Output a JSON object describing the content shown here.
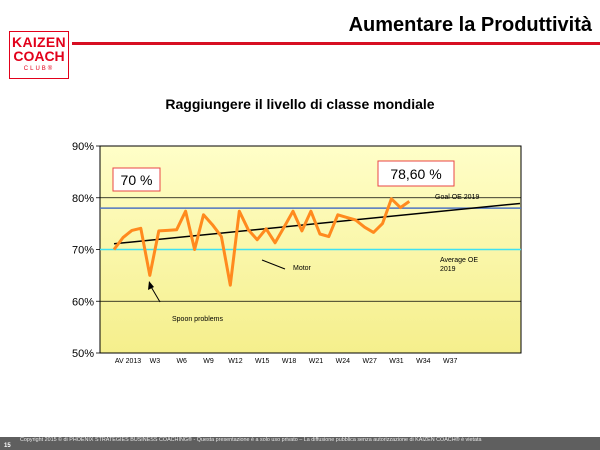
{
  "header": {
    "title": "Aumentare la Produttività",
    "logo": {
      "line1": "KAIZEN",
      "line2": "COACH",
      "line3": "CLUB®"
    }
  },
  "subtitle": "Raggiungere il livello di classe mondiale",
  "colors": {
    "accent_red": "#d70e22",
    "plot_fill_top": "#fffec8",
    "plot_fill_bottom": "#f5ef8c",
    "series": "#ff8a1e",
    "trend": "#000000",
    "goal": "#4f74c2",
    "average": "#3fe1f2",
    "callout_border": "#e94545"
  },
  "chart_data": {
    "type": "line",
    "y_ticks": [
      "90%",
      "80%",
      "70%",
      "60%",
      "50%"
    ],
    "ylim": [
      50,
      90
    ],
    "x_ticks": [
      "AV 2013",
      "W3",
      "W6",
      "W9",
      "W12",
      "W15",
      "W18",
      "W21",
      "W24",
      "W27",
      "W31",
      "W34",
      "W37"
    ],
    "series": [
      {
        "values": [
          70,
          72.3,
          73.7,
          74.1,
          65,
          73.6,
          73.7,
          73.8,
          77.4,
          70,
          76.7,
          74.8,
          72.5,
          63.1,
          77.4,
          73.8,
          71.9,
          74,
          71.3,
          74.3,
          77.4,
          73.6,
          77.4,
          73,
          72.5,
          76.7,
          76.2,
          75.7,
          74.3,
          73.3,
          75,
          79.8,
          78.1,
          79.3
        ]
      }
    ],
    "trend": {
      "start": 71.1,
      "end": 78.9
    },
    "reference_lines": [
      {
        "label": "Goal OE 2019",
        "value": 78
      },
      {
        "label": "Average OE\n2019",
        "value": 70
      }
    ],
    "callouts": [
      "70 %",
      "78,60 %"
    ],
    "annotations": [
      "Motor",
      "Spoon problems"
    ],
    "grid": true
  },
  "footer": {
    "copyright": "Copyright 2015 © di PHOENIX STRATEGIES BUSINESS COACHING® - Questa presentazione è a solo uso privato – La diffusione pubblica senza autorizzazione di KAIZEN COACH® è vietata",
    "page": "15"
  }
}
